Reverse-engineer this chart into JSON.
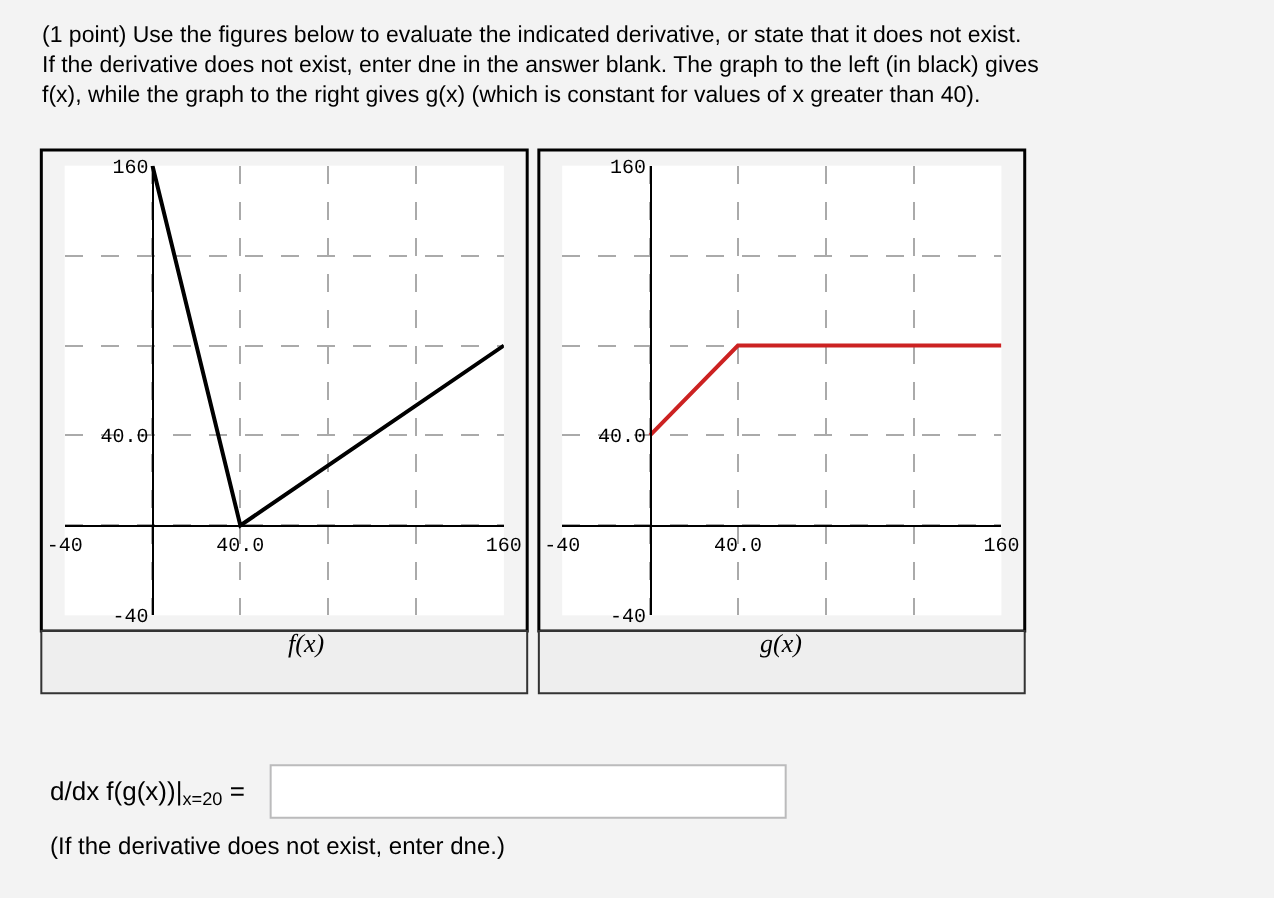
{
  "chart_data": [
    {
      "type": "line",
      "xlabel": "f(x)",
      "x": [
        0,
        40,
        160
      ],
      "series": [
        {
          "color": "#000000",
          "values": [
            160,
            0,
            80
          ]
        }
      ],
      "xlim": [
        -40,
        160
      ],
      "ylim": [
        -40,
        160
      ],
      "xticks": [
        -40,
        {
          "value": 0,
          "label": null
        },
        {
          "value": 40,
          "label": "40.0"
        },
        {
          "value": 80,
          "label": null
        },
        {
          "value": 120,
          "label": null
        },
        160
      ],
      "yticks": [
        -40,
        {
          "value": 0,
          "label": null
        },
        {
          "value": 40,
          "label": "40.0"
        },
        {
          "value": 80,
          "label": null
        },
        {
          "value": 120,
          "label": null
        },
        160
      ],
      "grid": true,
      "annotations": [
        "(1 point) Use the figures below to evaluate the indicated derivative, or state that it does not exist. If the derivative does not exist, enter dne in the answer blank. The graph to the left (in black) gives f(x), while the graph to the right gives g(x) (which is constant for values of x greater than 40).",
        "d/dx f(g(x))|$_{x=20}$ =",
        "(If the derivative does not exist, enter dne.)"
      ]
    },
    {
      "type": "line",
      "xlabel": "g(x)",
      "x": [
        0,
        40,
        160
      ],
      "series": [
        {
          "color": "#cc2222",
          "values": [
            40,
            80,
            80
          ]
        }
      ],
      "xlim": [
        -40,
        160
      ],
      "ylim": [
        -40,
        160
      ],
      "xticks": [
        -40,
        {
          "value": 0,
          "label": null
        },
        {
          "value": 40,
          "label": "40.0"
        },
        {
          "value": 80,
          "label": null
        },
        {
          "value": 120,
          "label": null
        },
        160
      ],
      "yticks": [
        -40,
        {
          "value": 0,
          "label": null
        },
        {
          "value": 40,
          "label": "40.0"
        },
        {
          "value": 80,
          "label": null
        },
        {
          "value": 120,
          "label": null
        },
        160
      ],
      "grid": true
    }
  ]
}
